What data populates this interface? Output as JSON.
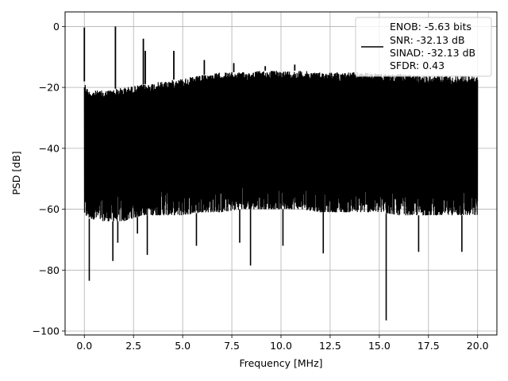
{
  "chart_data": {
    "type": "line",
    "title": "",
    "xlabel": "Frequency [MHz]",
    "ylabel": "PSD [dB]",
    "xlim": [
      -0.98,
      20.98
    ],
    "ylim": [
      -101.3,
      4.8
    ],
    "xticks": [
      0.0,
      2.5,
      5.0,
      7.5,
      10.0,
      12.5,
      15.0,
      17.5,
      20.0
    ],
    "xtick_labels": [
      "0.0",
      "2.5",
      "5.0",
      "7.5",
      "10.0",
      "12.5",
      "15.0",
      "17.5",
      "20.0"
    ],
    "yticks": [
      0,
      -20,
      -40,
      -60,
      -80,
      -100
    ],
    "ytick_labels": [
      "0",
      "−20",
      "−40",
      "−60",
      "−80",
      "−100"
    ],
    "grid": true,
    "legend_location": "top-right",
    "legend_entries": [
      "ENOB: -5.63 bits",
      "SNR: -32.13 dB",
      "SINAD: -32.13 dB",
      "SFDR: 0.43"
    ],
    "series": [
      {
        "color": "#000000",
        "noise_floor_envelope": {
          "x": [
            0.0,
            0.2,
            1.0,
            2.0,
            3.0,
            4.0,
            5.0,
            6.0,
            7.0,
            8.0,
            9.0,
            10.0,
            11.0,
            12.0,
            13.0,
            14.0,
            15.0,
            16.0,
            17.0,
            18.0,
            19.0,
            20.0
          ],
          "upper": [
            -18,
            -21,
            -21,
            -20,
            -19,
            -18,
            -17,
            -16,
            -15,
            -15,
            -14.5,
            -14.5,
            -14.5,
            -15,
            -15,
            -15,
            -15.5,
            -15.5,
            -16,
            -16,
            -16,
            -16.5
          ],
          "lower": [
            -62,
            -63,
            -64,
            -64,
            -62,
            -62,
            -62,
            -61,
            -61,
            -60,
            -60,
            -60,
            -60,
            -61,
            -61,
            -61,
            -61,
            -62,
            -62,
            -62,
            -62,
            -62
          ]
        },
        "spurs": [
          {
            "x": 0.0,
            "y": -0.3
          },
          {
            "x": 1.58,
            "y": 0.0
          },
          {
            "x": 3.0,
            "y": -4.0
          },
          {
            "x": 3.1,
            "y": -8.0
          },
          {
            "x": 4.55,
            "y": -8.0
          },
          {
            "x": 6.1,
            "y": -11.0
          },
          {
            "x": 7.6,
            "y": -12.0
          },
          {
            "x": 9.2,
            "y": -13.0
          },
          {
            "x": 10.7,
            "y": -12.5
          }
        ],
        "dips": [
          {
            "x": 0.25,
            "y": -83.5
          },
          {
            "x": 1.45,
            "y": -77.0
          },
          {
            "x": 1.7,
            "y": -71.0
          },
          {
            "x": 2.7,
            "y": -68.0
          },
          {
            "x": 3.2,
            "y": -75.0
          },
          {
            "x": 5.7,
            "y": -72.0
          },
          {
            "x": 7.9,
            "y": -71.0
          },
          {
            "x": 8.45,
            "y": -78.5
          },
          {
            "x": 10.1,
            "y": -72.0
          },
          {
            "x": 12.15,
            "y": -74.5
          },
          {
            "x": 15.35,
            "y": -96.5
          },
          {
            "x": 17.0,
            "y": -74.0
          },
          {
            "x": 19.2,
            "y": -74.0
          }
        ]
      }
    ]
  }
}
